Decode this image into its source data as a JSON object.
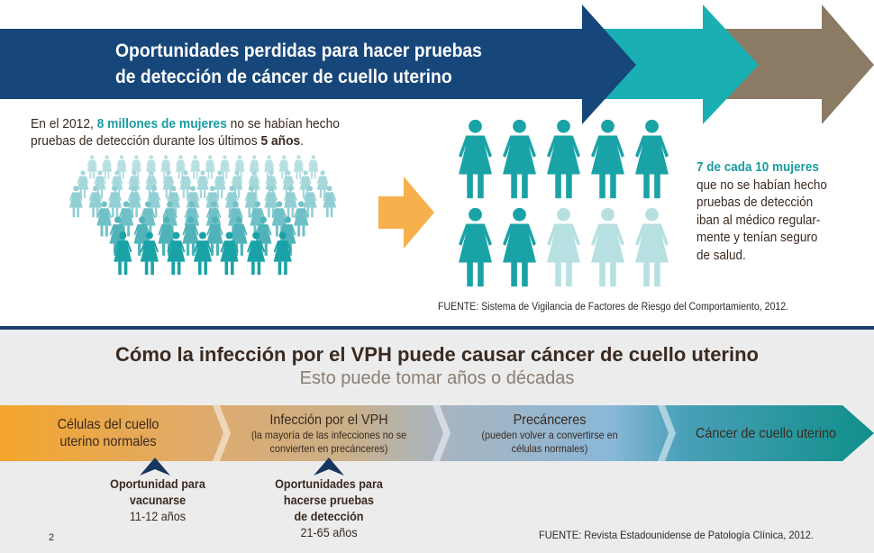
{
  "banner": {
    "title_line1": "Oportunidades perdidas para hacer pruebas",
    "title_line2": "de detección de cáncer de cuello uterino",
    "colors": {
      "navy": "#17467a",
      "teal": "#1ab0b3",
      "brown": "#8b7b65"
    }
  },
  "intro": {
    "t1": "En el 2012, ",
    "t2": "8 millones de mujeres",
    "t3": " no se habían hecho",
    "t4": "pruebas de detección durante los últimos ",
    "t5": "5 años",
    "t6": "."
  },
  "crowd": {
    "rows": [
      16,
      15,
      14,
      10,
      8,
      7
    ],
    "icon": "woman-icon"
  },
  "ratio": {
    "highlighted": 7,
    "total": 10,
    "colors": {
      "on": "#1aa3a7",
      "off": "#b7e0e2"
    }
  },
  "seven": {
    "bold": "7 de cada 10 mujeres",
    "lines": [
      "que no se habían hecho",
      "pruebas de detección",
      "iban al médico regular-",
      "mente y tenían seguro",
      "de salud."
    ]
  },
  "source1": "FUENTE: Sistema de Vigilancia de Factores de Riesgo del Comportamiento, 2012.",
  "lower": {
    "title": "Cómo la infección por el VPH puede causar cáncer de cuello uterino",
    "subtitle": "Esto puede tomar años o décadas",
    "stages": [
      {
        "main": "Células del cuello uterino normales",
        "sub": ""
      },
      {
        "main": "Infección por el VPH",
        "sub": "(la mayoría de las infecciones no se convierten en precánceres)"
      },
      {
        "main": "Precánceres",
        "sub": "(pueden volver a convertirse en células normales)"
      },
      {
        "main": "Cáncer de cuello uterino",
        "sub": ""
      }
    ],
    "opportunities": [
      {
        "l1": "Oportunidad para",
        "l2": "vacunarse",
        "l3": "",
        "ages": "11-12 años"
      },
      {
        "l1": "Oportunidades para",
        "l2": "hacerse pruebas",
        "l3": "de detección",
        "ages": "21-65 años"
      }
    ],
    "source": "FUENTE:  Revista Estadounidense de Patología Clínica, 2012.",
    "page": "2"
  }
}
